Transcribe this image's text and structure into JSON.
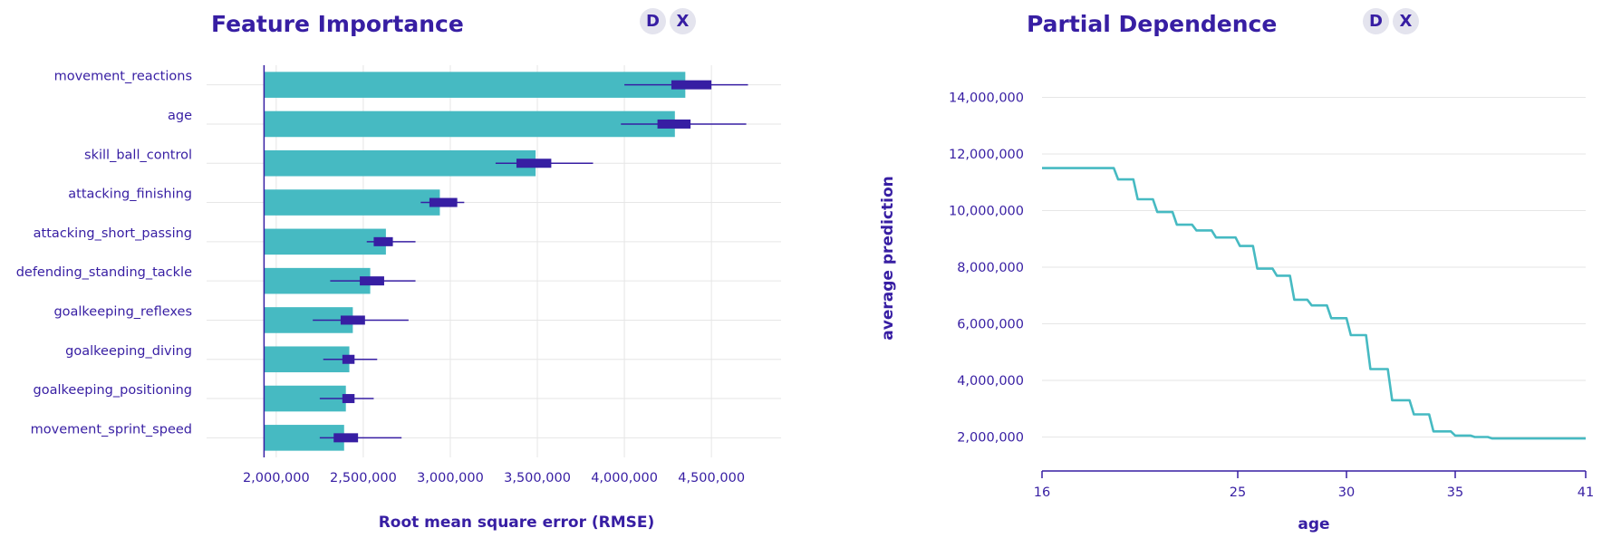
{
  "colors": {
    "accent": "#371ea3",
    "bar": "#46bac2",
    "grid": "#e6e6e6",
    "button_bg": "#e4e4ee"
  },
  "fi_panel": {
    "title": "Feature Importance",
    "btn_d": "D",
    "btn_x": "X"
  },
  "pd_panel": {
    "title": "Partial Dependence",
    "btn_d": "D",
    "btn_x": "X"
  },
  "chart_data": [
    {
      "type": "bar",
      "orientation": "horizontal",
      "title": "Feature Importance",
      "xlabel": "Root mean square error (RMSE)",
      "ylabel": "",
      "baseline": 1930000,
      "xlim": [
        1600000,
        4900000
      ],
      "xticks": [
        2000000,
        2500000,
        3000000,
        3500000,
        4000000,
        4500000
      ],
      "xtick_labels": [
        "2,000,000",
        "2,500,000",
        "3,000,000",
        "3,500,000",
        "4,000,000",
        "4,500,000"
      ],
      "grid": true,
      "categories": [
        "movement_reactions",
        "age",
        "skill_ball_control",
        "attacking_finishing",
        "attacking_short_passing",
        "defending_standing_tackle",
        "goalkeeping_reflexes",
        "goalkeeping_diving",
        "goalkeeping_positioning",
        "movement_sprint_speed"
      ],
      "values": [
        4350000,
        4290000,
        3490000,
        2940000,
        2630000,
        2540000,
        2440000,
        2420000,
        2400000,
        2390000
      ],
      "boxplots": [
        {
          "min": 4000000,
          "q1": 4270000,
          "q3": 4500000,
          "max": 4710000
        },
        {
          "min": 3980000,
          "q1": 4190000,
          "q3": 4380000,
          "max": 4700000
        },
        {
          "min": 3260000,
          "q1": 3380000,
          "q3": 3580000,
          "max": 3820000
        },
        {
          "min": 2830000,
          "q1": 2880000,
          "q3": 3040000,
          "max": 3080000
        },
        {
          "min": 2520000,
          "q1": 2560000,
          "q3": 2670000,
          "max": 2800000
        },
        {
          "min": 2310000,
          "q1": 2480000,
          "q3": 2620000,
          "max": 2800000
        },
        {
          "min": 2210000,
          "q1": 2370000,
          "q3": 2510000,
          "max": 2760000
        },
        {
          "min": 2270000,
          "q1": 2380000,
          "q3": 2450000,
          "max": 2580000
        },
        {
          "min": 2250000,
          "q1": 2380000,
          "q3": 2450000,
          "max": 2560000
        },
        {
          "min": 2250000,
          "q1": 2330000,
          "q3": 2470000,
          "max": 2720000
        }
      ]
    },
    {
      "type": "line",
      "title": "Partial Dependence",
      "xlabel": "age",
      "ylabel": "average prediction",
      "xlim": [
        16,
        41
      ],
      "ylim": [
        800000,
        15200000
      ],
      "xticks": [
        16,
        25,
        30,
        35,
        41
      ],
      "xtick_labels": [
        "16",
        "25",
        "30",
        "35",
        "41"
      ],
      "yticks": [
        2000000,
        4000000,
        6000000,
        8000000,
        10000000,
        12000000,
        14000000
      ],
      "ytick_labels": [
        "2,000,000",
        "4,000,000",
        "6,000,000",
        "8,000,000",
        "10,000,000",
        "12,000,000",
        "14,000,000"
      ],
      "grid": true,
      "series": [
        {
          "name": "average prediction",
          "x": [
            16,
            19.3,
            19.5,
            20.2,
            20.4,
            21.1,
            21.3,
            22.0,
            22.2,
            22.9,
            23.1,
            23.8,
            24.0,
            24.9,
            25.1,
            25.7,
            25.9,
            26.6,
            26.8,
            27.4,
            27.6,
            28.2,
            28.4,
            29.1,
            29.3,
            30.0,
            30.2,
            30.9,
            31.1,
            31.9,
            32.1,
            32.9,
            33.1,
            33.8,
            34.0,
            34.8,
            35.0,
            35.7,
            35.9,
            36.5,
            36.7,
            38.0,
            38.2,
            41.0
          ],
          "values": [
            11500000,
            11500000,
            11100000,
            11100000,
            10400000,
            10400000,
            9950000,
            9950000,
            9500000,
            9500000,
            9300000,
            9300000,
            9050000,
            9050000,
            8750000,
            8750000,
            7950000,
            7950000,
            7700000,
            7700000,
            6850000,
            6850000,
            6650000,
            6650000,
            6200000,
            6200000,
            5600000,
            5600000,
            4400000,
            4400000,
            3300000,
            3300000,
            2800000,
            2800000,
            2200000,
            2200000,
            2050000,
            2050000,
            2000000,
            2000000,
            1950000,
            1950000,
            1950000,
            1950000
          ]
        }
      ]
    }
  ]
}
